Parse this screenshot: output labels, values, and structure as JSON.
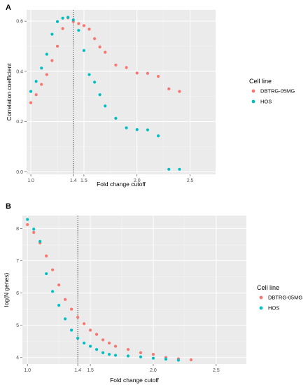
{
  "colors": {
    "panel_bg": "#ebebeb",
    "grid_major": "#ffffff",
    "grid_minor": "#f4f4f4",
    "dbtrg": "#f8766d",
    "hos": "#00bfc4",
    "cutoff_line": "#333333"
  },
  "chart_data": [
    {
      "type": "scatter",
      "panel": "A",
      "xlabel": "Fold change cutoff",
      "ylabel": "Correlation coefficient",
      "xlim": [
        0.96,
        2.74
      ],
      "ylim": [
        -0.01,
        0.645
      ],
      "x_ticks": [
        1.0,
        1.4,
        1.5,
        2.0,
        2.5
      ],
      "x_tick_labels": [
        "1.0",
        "1.4",
        "1.5",
        "2.0",
        "2.5"
      ],
      "y_ticks": [
        0.0,
        0.2,
        0.4,
        0.6
      ],
      "y_tick_labels": [
        "0.0",
        "0.2",
        "0.4",
        "0.6"
      ],
      "vline": 1.4,
      "grid": true,
      "legend_title": "Cell line",
      "legend_position": "right",
      "series": [
        {
          "name": "DBTRG-05MG",
          "color_key": "dbtrg",
          "x": [
            1.0,
            1.05,
            1.1,
            1.15,
            1.2,
            1.25,
            1.3,
            1.35,
            1.4,
            1.45,
            1.5,
            1.55,
            1.6,
            1.65,
            1.7,
            1.8,
            1.9,
            2.0,
            2.1,
            2.2,
            2.3,
            2.4,
            2.5,
            2.6,
            2.7
          ],
          "values": [
            0.275,
            0.307,
            0.348,
            0.387,
            0.443,
            0.5,
            0.57,
            0.613,
            0.598,
            0.59,
            0.582,
            0.568,
            0.53,
            0.497,
            0.476,
            0.425,
            0.415,
            0.393,
            0.392,
            0.38,
            0.33,
            0.32,
            null,
            null,
            null
          ]
        },
        {
          "name": "HOS",
          "color_key": "hos",
          "x": [
            1.0,
            1.05,
            1.1,
            1.15,
            1.2,
            1.25,
            1.3,
            1.35,
            1.4,
            1.45,
            1.5,
            1.55,
            1.6,
            1.65,
            1.7,
            1.8,
            1.9,
            2.0,
            2.1,
            2.2,
            2.3,
            2.4,
            2.5,
            2.6,
            2.7
          ],
          "values": [
            0.32,
            0.36,
            0.413,
            0.468,
            0.548,
            0.598,
            0.612,
            0.615,
            0.605,
            0.563,
            0.483,
            0.387,
            0.357,
            0.307,
            0.262,
            0.213,
            0.175,
            0.168,
            0.167,
            0.143,
            0.01,
            0.01,
            null,
            null,
            null
          ]
        }
      ]
    },
    {
      "type": "scatter",
      "panel": "B",
      "xlabel": "Fold change cutoff",
      "ylabel": "log(N genes)",
      "xlim": [
        0.96,
        2.74
      ],
      "ylim": [
        3.8,
        8.4
      ],
      "x_ticks": [
        1.0,
        1.4,
        1.5,
        2.0,
        2.5
      ],
      "x_tick_labels": [
        "1.0",
        "1.4",
        "1.5",
        "2.0",
        "2.5"
      ],
      "y_ticks": [
        4,
        5,
        6,
        7,
        8
      ],
      "y_tick_labels": [
        "4",
        "5",
        "6",
        "7",
        "8"
      ],
      "vline": 1.4,
      "grid": true,
      "legend_title": "Cell line",
      "legend_position": "right",
      "series": [
        {
          "name": "DBTRG-05MG",
          "color_key": "dbtrg",
          "x": [
            1.0,
            1.05,
            1.1,
            1.15,
            1.2,
            1.25,
            1.3,
            1.35,
            1.4,
            1.45,
            1.5,
            1.55,
            1.6,
            1.65,
            1.7,
            1.8,
            1.9,
            2.0,
            2.1,
            2.2,
            2.3,
            2.4,
            2.5,
            2.6,
            2.7
          ],
          "values": [
            8.12,
            7.88,
            7.55,
            7.15,
            6.72,
            6.25,
            5.8,
            5.5,
            5.25,
            5.05,
            4.85,
            4.72,
            4.55,
            4.45,
            4.35,
            4.25,
            4.15,
            4.1,
            4.0,
            3.96,
            3.93,
            null,
            null,
            null,
            null
          ]
        },
        {
          "name": "HOS",
          "color_key": "hos",
          "x": [
            1.0,
            1.05,
            1.1,
            1.15,
            1.2,
            1.25,
            1.3,
            1.35,
            1.4,
            1.45,
            1.5,
            1.55,
            1.6,
            1.65,
            1.7,
            1.8,
            1.9,
            2.0,
            2.1,
            2.2,
            2.3,
            2.4,
            2.5,
            2.6,
            2.7
          ],
          "values": [
            8.28,
            7.98,
            7.6,
            6.6,
            6.05,
            5.62,
            5.2,
            4.85,
            4.6,
            4.45,
            4.35,
            4.25,
            4.15,
            4.1,
            4.07,
            4.05,
            4.02,
            3.98,
            3.95,
            3.92,
            null,
            null,
            null,
            null,
            null
          ]
        }
      ]
    }
  ]
}
